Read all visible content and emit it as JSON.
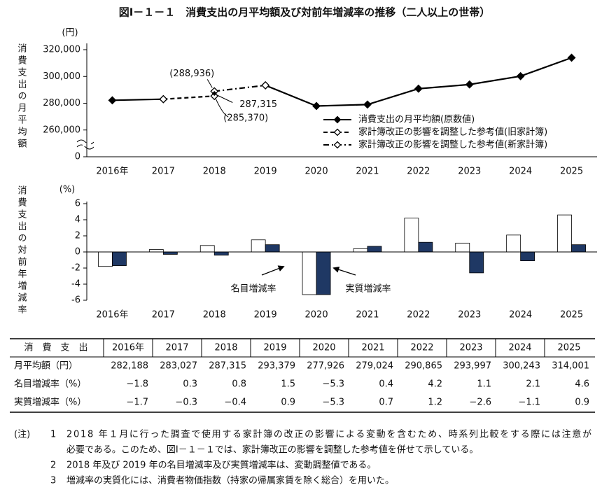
{
  "title": "図Ⅰ－１－１　消費支出の月平均額及び対前年増減率の推移（二人以上の世帯）",
  "chart_data": [
    {
      "type": "line",
      "ylabel": "消費支出の月平均額",
      "unit": "(円)",
      "categories": [
        "2016年",
        "2017",
        "2018",
        "2019",
        "2020",
        "2021",
        "2022",
        "2023",
        "2024",
        "2025"
      ],
      "ylim": [
        240000,
        320000
      ],
      "yticks": [
        {
          "value": 260000,
          "label": "260,000"
        },
        {
          "value": 280000,
          "label": "280,000"
        },
        {
          "value": 300000,
          "label": "300,000"
        },
        {
          "value": 320000,
          "label": "320,000"
        }
      ],
      "ybreak_tick": 0,
      "series": [
        {
          "name": "消費支出の月平均額(原数値)",
          "color": "#000000",
          "style": "solid",
          "marker": "diamond-filled",
          "values": [
            282188,
            283027,
            null,
            293379,
            277926,
            279024,
            290865,
            293997,
            300243,
            314001
          ]
        },
        {
          "name": "家計簿改正の影響を調整した参考値(旧家計簿)",
          "color": "#000000",
          "style": "dashed",
          "marker": "diamond-open",
          "values": [
            null,
            283027,
            285370,
            null,
            null,
            null,
            null,
            null,
            null,
            null
          ],
          "value_labels": [
            null,
            null,
            "(285,370)",
            null,
            null,
            null,
            null,
            null,
            null,
            null
          ]
        },
        {
          "name": "家計簿改正の影響を調整した参考値(新家計簿)",
          "color": "#000000",
          "style": "dashdot",
          "marker": "diamond-open",
          "values": [
            null,
            null,
            288936,
            293379,
            null,
            null,
            null,
            null,
            null,
            null
          ],
          "value_labels": [
            null,
            null,
            "(288,936)",
            null,
            null,
            null,
            null,
            null,
            null,
            null
          ]
        }
      ],
      "annotations": [
        {
          "x": "2018",
          "value": 287315,
          "label": "287,315"
        }
      ],
      "legend": "right"
    },
    {
      "type": "bar",
      "ylabel": "消費支出の対前年増減率",
      "unit": "(%)",
      "categories": [
        "2016年",
        "2017",
        "2018",
        "2019",
        "2020",
        "2021",
        "2022",
        "2023",
        "2024",
        "2025"
      ],
      "ylim": [
        -6,
        6
      ],
      "yticks": [
        -6,
        -4,
        -2,
        0,
        2,
        4,
        6
      ],
      "series": [
        {
          "name": "名目増減率",
          "color": "#ffffff",
          "values": [
            -1.8,
            0.3,
            0.8,
            1.5,
            -5.3,
            0.4,
            4.2,
            1.1,
            2.1,
            4.6
          ]
        },
        {
          "name": "実質増減率",
          "color": "#1f3864",
          "values": [
            -1.7,
            -0.3,
            -0.4,
            0.9,
            -5.3,
            0.7,
            1.2,
            -2.6,
            -1.1,
            0.9
          ]
        }
      ],
      "legend": "arrows"
    }
  ],
  "table": {
    "header": [
      "消　費　支　出",
      "2016年",
      "2017",
      "2018",
      "2019",
      "2020",
      "2021",
      "2022",
      "2023",
      "2024",
      "2025"
    ],
    "rows": [
      [
        "月平均額（円）",
        "282,188",
        "283,027",
        "287,315",
        "293,379",
        "277,926",
        "279,024",
        "290,865",
        "293,997",
        "300,243",
        "314,001"
      ],
      [
        "名目増減率（%）",
        "−1.8",
        "0.3",
        "0.8",
        "1.5",
        "−5.3",
        "0.4",
        "4.2",
        "1.1",
        "2.1",
        "4.6"
      ],
      [
        "実質増減率（%）",
        "−1.7",
        "−0.3",
        "−0.4",
        "0.9",
        "−5.3",
        "0.7",
        "1.2",
        "−2.6",
        "−1.1",
        "0.9"
      ]
    ]
  },
  "notes": {
    "label": "(注)",
    "items": [
      {
        "number": "1",
        "lines": [
          "2018 年１月に行った調査で使用する家計簿の改正の影響による変動を含むため、時系列比較をする際には注意が",
          "必要である。このため、図Ⅰ－１－１では、家計簿改正の影響を調整した参考値を併せて示している。"
        ]
      },
      {
        "number": "2",
        "lines": [
          "2018 年及び 2019 年の名目増減率及び実質増減率は、変動調整値である。"
        ]
      },
      {
        "number": "3",
        "lines": [
          "増減率の実質化には、消費者物価指数（持家の帰属家賃を除く総合）を用いた。"
        ]
      }
    ]
  }
}
